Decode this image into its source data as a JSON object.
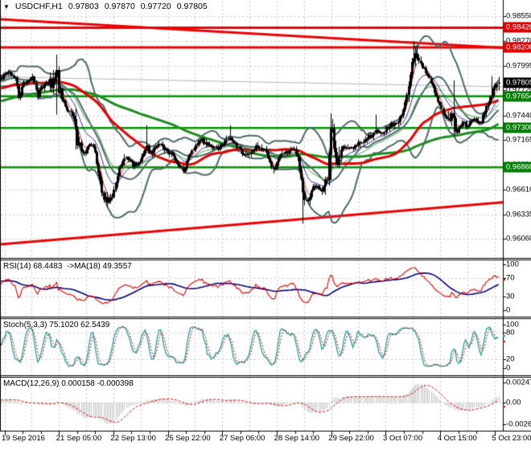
{
  "header": {
    "dropdown_icon": "▼",
    "symbol_tf": "USDCHF,H1",
    "open": "0.97803",
    "high": "0.97870",
    "low": "0.97720",
    "close": "0.97805"
  },
  "colors": {
    "bg": "#ffffff",
    "grid": "#c8c8c8",
    "candle": "#000000",
    "bollinger": "#4e6a6a",
    "ma_red": "#e60000",
    "ma_green": "#1e8c1e",
    "ema_red": "#d93333",
    "ema_blue": "#2f2f9e",
    "ema_green": "#3fa03f",
    "level_red": "#ee0000",
    "level_green": "#009500",
    "gray_line": "#b5b5b5",
    "badge_red": "#e00000",
    "badge_green": "#008000",
    "badge_black": "#000000",
    "rsi_line": "#e00000",
    "rsi_ma": "#00007f",
    "stoch_k": "#2aa8a8",
    "stoch_d": "#e00000",
    "macd_hist": "#c4c4c4",
    "macd_signal": "#e00000",
    "axis_text": "#000000"
  },
  "chart_data": {
    "type": "candlestick",
    "symbol": "USDCHF",
    "timeframe": "H1",
    "title": "USDCHF,H1 0.97803 0.97870 0.97720 0.97805",
    "grid": true,
    "x_axis": {
      "labels": [
        "19 Sep 2016",
        "21 Sep 05:00",
        "22 Sep 13:00",
        "25 Sep 22:00",
        "27 Sep 06:00",
        "28 Sep 14:00",
        "29 Sep 22:00",
        "3 Oct 07:00",
        "4 Oct 15:00",
        "5 Oct 23:00"
      ]
    },
    "y_axis": {
      "labels": [
        "0.98550",
        "0.98270",
        "0.97995",
        "0.97720",
        "0.97440",
        "0.97165",
        "0.96890",
        "0.96610",
        "0.96335",
        "0.96060"
      ],
      "gridline_prices": [
        0.9855,
        0.9827,
        0.97995,
        0.9772,
        0.9744,
        0.97165,
        0.9689,
        0.9661,
        0.96335,
        0.9606
      ],
      "range": [
        0.9606,
        0.9855
      ]
    },
    "levels": [
      {
        "label": "0.98420",
        "price": 0.9842,
        "color": "red",
        "type": "resistance"
      },
      {
        "label": "0.98200",
        "price": 0.982,
        "color": "red",
        "type": "resistance"
      },
      {
        "label": "0.97654",
        "price": 0.97654,
        "color": "green",
        "type": "support"
      },
      {
        "label": "0.97300",
        "price": 0.973,
        "color": "green",
        "type": "support"
      },
      {
        "label": "0.96860",
        "price": 0.9686,
        "color": "green",
        "type": "support"
      }
    ],
    "current_price": {
      "label": "0.97805",
      "price": 0.97805
    },
    "trendlines": [
      {
        "p1": 0.98514,
        "p2": 0.98196,
        "color": "red",
        "dir": "descending"
      },
      {
        "p1": 0.96,
        "p2": 0.9647,
        "color": "red",
        "dir": "ascending"
      },
      {
        "p1": 0.9787,
        "p2": 0.9776,
        "color": "gray",
        "dir": "flat"
      }
    ],
    "prehistory_waypoints": [
      [
        -300,
        0.9712
      ],
      [
        -240,
        0.9727
      ],
      [
        -180,
        0.9745
      ],
      [
        -120,
        0.9761
      ],
      [
        -60,
        0.9774
      ],
      [
        -20,
        0.9782
      ]
    ],
    "price_waypoints": [
      [
        0,
        0.9786
      ],
      [
        6,
        0.9789
      ],
      [
        12,
        0.9791
      ],
      [
        16,
        0.9787
      ],
      [
        20,
        0.9784
      ],
      [
        24,
        0.9758
      ],
      [
        27,
        0.9776
      ],
      [
        31,
        0.9782
      ],
      [
        36,
        0.9784
      ],
      [
        40,
        0.9786
      ],
      [
        44,
        0.9775
      ],
      [
        47,
        0.9766
      ],
      [
        50,
        0.9775
      ],
      [
        55,
        0.9778
      ],
      [
        60,
        0.978
      ],
      [
        64,
        0.9779
      ],
      [
        68,
        0.9782
      ],
      [
        70,
        0.9794
      ],
      [
        72,
        0.9776
      ],
      [
        75,
        0.9768
      ],
      [
        79,
        0.976
      ],
      [
        83,
        0.9752
      ],
      [
        87,
        0.9747
      ],
      [
        91,
        0.974
      ],
      [
        94,
        0.9728
      ],
      [
        96,
        0.9714
      ],
      [
        99,
        0.971
      ],
      [
        102,
        0.9702
      ],
      [
        105,
        0.97
      ],
      [
        108,
        0.9708
      ],
      [
        111,
        0.9712
      ],
      [
        114,
        0.9711
      ],
      [
        117,
        0.9707
      ],
      [
        120,
        0.969
      ],
      [
        123,
        0.9678
      ],
      [
        126,
        0.9662
      ],
      [
        129,
        0.965
      ],
      [
        132,
        0.9649
      ],
      [
        135,
        0.9646
      ],
      [
        138,
        0.9652
      ],
      [
        141,
        0.9661
      ],
      [
        144,
        0.9672
      ],
      [
        147,
        0.9681
      ],
      [
        150,
        0.969
      ],
      [
        154,
        0.9694
      ],
      [
        158,
        0.9696
      ],
      [
        162,
        0.9691
      ],
      [
        166,
        0.9688
      ],
      [
        170,
        0.9691
      ],
      [
        174,
        0.9694
      ],
      [
        178,
        0.9699
      ],
      [
        182,
        0.9709
      ],
      [
        185,
        0.9703
      ],
      [
        189,
        0.9704
      ],
      [
        193,
        0.9707
      ],
      [
        197,
        0.9711
      ],
      [
        201,
        0.9709
      ],
      [
        205,
        0.9706
      ],
      [
        209,
        0.9704
      ],
      [
        213,
        0.97
      ],
      [
        217,
        0.9696
      ],
      [
        221,
        0.969
      ],
      [
        225,
        0.9684
      ],
      [
        228,
        0.9681
      ],
      [
        231,
        0.9689
      ],
      [
        235,
        0.9698
      ],
      [
        239,
        0.9705
      ],
      [
        243,
        0.971
      ],
      [
        247,
        0.9714
      ],
      [
        251,
        0.9716
      ],
      [
        255,
        0.9713
      ],
      [
        259,
        0.971
      ],
      [
        263,
        0.9708
      ],
      [
        267,
        0.9709
      ],
      [
        271,
        0.9707
      ],
      [
        275,
        0.971
      ],
      [
        279,
        0.9714
      ],
      [
        283,
        0.9719
      ],
      [
        287,
        0.9718
      ],
      [
        291,
        0.9713
      ],
      [
        295,
        0.9708
      ],
      [
        299,
        0.9704
      ],
      [
        303,
        0.9701
      ],
      [
        307,
        0.97
      ],
      [
        311,
        0.9703
      ],
      [
        315,
        0.9706
      ],
      [
        319,
        0.9709
      ],
      [
        323,
        0.9708
      ],
      [
        327,
        0.9705
      ],
      [
        331,
        0.9702
      ],
      [
        335,
        0.9695
      ],
      [
        338,
        0.9686
      ],
      [
        341,
        0.9684
      ],
      [
        344,
        0.9692
      ],
      [
        348,
        0.9699
      ],
      [
        352,
        0.9704
      ],
      [
        356,
        0.9703
      ],
      [
        360,
        0.9705
      ],
      [
        364,
        0.9707
      ],
      [
        368,
        0.9702
      ],
      [
        371,
        0.9692
      ],
      [
        374,
        0.9672
      ],
      [
        377,
        0.9653
      ],
      [
        380,
        0.9649
      ],
      [
        383,
        0.9651
      ],
      [
        386,
        0.966
      ],
      [
        389,
        0.9666
      ],
      [
        392,
        0.9665
      ],
      [
        395,
        0.9662
      ],
      [
        398,
        0.9659
      ],
      [
        401,
        0.9661
      ],
      [
        404,
        0.9666
      ],
      [
        407,
        0.968
      ],
      [
        410,
        0.972
      ],
      [
        412,
        0.9738
      ],
      [
        414,
        0.9712
      ],
      [
        416,
        0.9698
      ],
      [
        418,
        0.9686
      ],
      [
        420,
        0.9694
      ],
      [
        423,
        0.9704
      ],
      [
        426,
        0.9708
      ],
      [
        429,
        0.9706
      ],
      [
        432,
        0.9708
      ],
      [
        435,
        0.971
      ],
      [
        439,
        0.9709
      ],
      [
        443,
        0.9711
      ],
      [
        447,
        0.9713
      ],
      [
        451,
        0.9716
      ],
      [
        455,
        0.9718
      ],
      [
        459,
        0.9721
      ],
      [
        463,
        0.9723
      ],
      [
        466,
        0.973
      ],
      [
        469,
        0.9726
      ],
      [
        472,
        0.9722
      ],
      [
        475,
        0.9725
      ],
      [
        478,
        0.9728
      ],
      [
        481,
        0.9731
      ],
      [
        484,
        0.9734
      ],
      [
        487,
        0.9733
      ],
      [
        490,
        0.9735
      ],
      [
        493,
        0.9737
      ],
      [
        496,
        0.974
      ],
      [
        499,
        0.9746
      ],
      [
        502,
        0.9754
      ],
      [
        505,
        0.9766
      ],
      [
        508,
        0.978
      ],
      [
        511,
        0.9796
      ],
      [
        514,
        0.9812
      ],
      [
        517,
        0.9816
      ],
      [
        520,
        0.9808
      ],
      [
        523,
        0.9803
      ],
      [
        526,
        0.9797
      ],
      [
        529,
        0.9792
      ],
      [
        532,
        0.9787
      ],
      [
        535,
        0.9781
      ],
      [
        538,
        0.9774
      ],
      [
        541,
        0.9768
      ],
      [
        544,
        0.9759
      ],
      [
        547,
        0.9752
      ],
      [
        550,
        0.9747
      ],
      [
        553,
        0.9744
      ],
      [
        556,
        0.9742
      ],
      [
        559,
        0.9741
      ],
      [
        562,
        0.9744
      ],
      [
        565,
        0.9731
      ],
      [
        568,
        0.9727
      ],
      [
        571,
        0.973
      ],
      [
        574,
        0.9734
      ],
      [
        577,
        0.9736
      ],
      [
        580,
        0.9731
      ],
      [
        583,
        0.9734
      ],
      [
        586,
        0.9739
      ],
      [
        589,
        0.9741
      ],
      [
        592,
        0.9738
      ],
      [
        595,
        0.9736
      ],
      [
        598,
        0.9739
      ],
      [
        601,
        0.9744
      ],
      [
        604,
        0.9753
      ],
      [
        607,
        0.976
      ],
      [
        610,
        0.9767
      ],
      [
        613,
        0.9772
      ],
      [
        616,
        0.9777
      ],
      [
        620,
        0.97805
      ]
    ],
    "spikes": [
      [
        70,
        0.9812,
        0.9745
      ],
      [
        95,
        0.9752,
        0.9706
      ],
      [
        182,
        0.9733,
        null
      ],
      [
        285,
        0.9733,
        null
      ],
      [
        340,
        null,
        0.9679
      ],
      [
        377,
        null,
        0.9623
      ],
      [
        411,
        0.9746,
        0.9672
      ],
      [
        466,
        0.9745,
        null
      ],
      [
        515,
        0.9827,
        null
      ],
      [
        563,
        0.9783,
        0.972
      ],
      [
        612,
        0.9788,
        null
      ]
    ],
    "volatility_zones": [
      [
        60,
        75,
        2.4
      ],
      [
        90,
        100,
        1.8
      ],
      [
        118,
        140,
        1.7
      ],
      [
        368,
        386,
        1.8
      ],
      [
        404,
        424,
        2.8
      ],
      [
        503,
        521,
        2.2
      ],
      [
        554,
        567,
        1.7
      ],
      [
        598,
        620,
        1.4
      ]
    ],
    "indicators": {
      "bollinger": {
        "period": 20,
        "deviation": 2
      },
      "ma_slow_red": {
        "period": 55
      },
      "ma_slow_green": {
        "period": 110
      },
      "ema_fast_periods": [
        5,
        13,
        24
      ],
      "rsi": {
        "label": "RSI(14) 68.4483  ->MA(18) 49.3557",
        "period": 14,
        "ma_period": 18,
        "value": 68.4483,
        "ma_value": 49.3557,
        "range": [
          0,
          100
        ],
        "scale_labels": [
          "100",
          "70",
          "30",
          "0"
        ],
        "scale_values": [
          100,
          70,
          30,
          0
        ],
        "dashed_levels": [
          70,
          30
        ]
      },
      "stoch": {
        "label": "Stoch(5,3,3) 75.1020 62.5439",
        "k_period": 5,
        "d_period": 3,
        "slowing": 3,
        "value_k": 75.102,
        "value_d": 62.5439,
        "range": [
          0,
          100
        ],
        "scale_labels": [
          "100",
          "80",
          "20",
          "0"
        ],
        "scale_values": [
          100,
          80,
          20,
          0
        ],
        "dashed_levels": [
          80,
          20
        ]
      },
      "macd": {
        "label": "MACD(12,26,9) 0.000158 -0.000398",
        "fast": 12,
        "slow": 26,
        "signal": 9,
        "value_main": 0.000158,
        "value_signal": -0.000398,
        "scale_labels": [
          "0.002474",
          "0.00",
          "-0.002679"
        ],
        "scale_values": [
          0.002474,
          0,
          -0.002679
        ],
        "dashed_levels": [
          0
        ]
      }
    }
  }
}
